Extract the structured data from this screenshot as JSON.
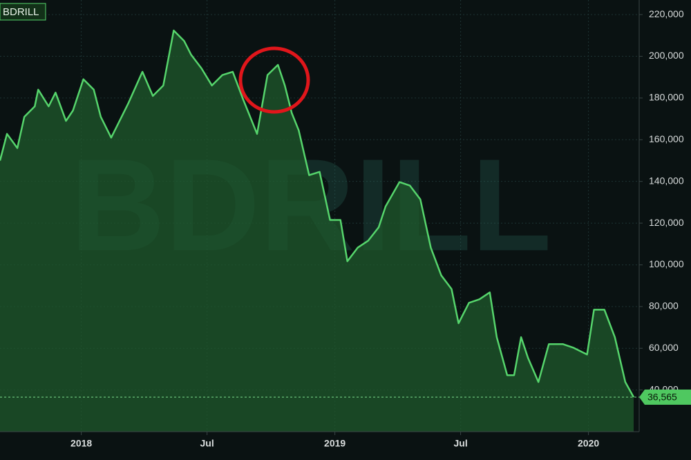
{
  "chart_data": {
    "type": "area",
    "symbol": "BDRILL",
    "watermark": "BDRILL",
    "x": [
      "2017-09-06",
      "2017-09-16",
      "2017-10-01",
      "2017-10-11",
      "2017-10-26",
      "2017-10-31",
      "2017-11-15",
      "2017-11-25",
      "2017-12-10",
      "2017-12-20",
      "2018-01-04",
      "2018-01-19",
      "2018-01-29",
      "2018-02-13",
      "2018-02-28",
      "2018-03-10",
      "2018-03-30",
      "2018-04-14",
      "2018-04-29",
      "2018-05-14",
      "2018-05-29",
      "2018-06-08",
      "2018-06-23",
      "2018-07-08",
      "2018-07-23",
      "2018-08-07",
      "2018-08-22",
      "2018-09-11",
      "2018-09-26",
      "2018-10-11",
      "2018-10-21",
      "2018-10-31",
      "2018-11-10",
      "2018-11-25",
      "2018-12-10",
      "2018-12-25",
      "2019-01-09",
      "2019-01-19",
      "2019-02-03",
      "2019-02-18",
      "2019-03-05",
      "2019-03-15",
      "2019-04-04",
      "2019-04-19",
      "2019-05-04",
      "2019-05-19",
      "2019-06-03",
      "2019-06-18",
      "2019-06-28",
      "2019-07-13",
      "2019-07-28",
      "2019-08-12",
      "2019-08-22",
      "2019-09-06",
      "2019-09-16",
      "2019-09-26",
      "2019-10-06",
      "2019-10-21",
      "2019-11-05",
      "2019-11-25",
      "2019-12-10",
      "2019-12-30",
      "2020-01-09",
      "2020-01-24",
      "2020-02-08",
      "2020-02-23",
      "2020-03-06"
    ],
    "values": [
      150000,
      162800,
      156000,
      171000,
      176000,
      184000,
      176000,
      182600,
      169000,
      174000,
      189000,
      184000,
      171000,
      161000,
      171000,
      177700,
      192600,
      181000,
      186000,
      212400,
      207400,
      200800,
      194200,
      186000,
      191000,
      192600,
      179300,
      162800,
      191000,
      195900,
      186000,
      172700,
      164500,
      143000,
      144600,
      121500,
      121500,
      101700,
      108300,
      111600,
      118000,
      128000,
      139700,
      138000,
      131400,
      108300,
      95000,
      88400,
      72000,
      81800,
      83500,
      86800,
      65300,
      47100,
      47100,
      65300,
      55400,
      43800,
      62000,
      62000,
      60300,
      57000,
      78500,
      78500,
      65300,
      43800,
      36565
    ],
    "color": "#56d56c",
    "fill": "#1f5a2c",
    "last_price": {
      "value": 36565,
      "label": "36,565"
    },
    "xlim": [
      "2017-09-06",
      "2020-03-14"
    ],
    "xticks": [
      {
        "value": "2018-01-01",
        "label": "2018"
      },
      {
        "value": "2018-07-01",
        "label": "Jul"
      },
      {
        "value": "2019-01-01",
        "label": "2019"
      },
      {
        "value": "2019-07-01",
        "label": "Jul"
      },
      {
        "value": "2020-01-01",
        "label": "2020"
      }
    ],
    "ylim": [
      20000,
      227000
    ],
    "yticks": [
      {
        "value": 40000,
        "label": "40,000"
      },
      {
        "value": 60000,
        "label": "60,000"
      },
      {
        "value": 80000,
        "label": "80,000"
      },
      {
        "value": 100000,
        "label": "100,000"
      },
      {
        "value": 120000,
        "label": "120,000"
      },
      {
        "value": 140000,
        "label": "140,000"
      },
      {
        "value": 160000,
        "label": "160,000"
      },
      {
        "value": 180000,
        "label": "180,000"
      },
      {
        "value": 200000,
        "label": "200,000"
      },
      {
        "value": 220000,
        "label": "220,000"
      }
    ],
    "grid": true
  }
}
